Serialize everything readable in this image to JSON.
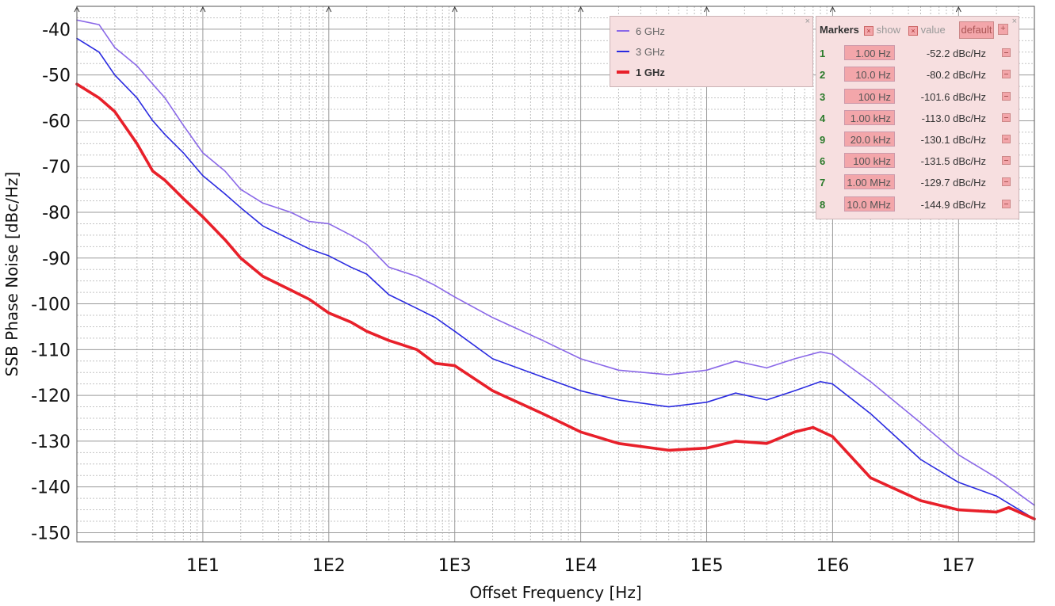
{
  "chart_data": {
    "type": "line",
    "xscale": "log",
    "xlabel": "Offset Frequency [Hz]",
    "ylabel": "SSB Phase Noise [dBc/Hz]",
    "xlim": [
      1,
      40000000
    ],
    "ylim": [
      -152,
      -35
    ],
    "grid": true,
    "legend_position": "top-right",
    "x_ticks": [
      {
        "value": 10,
        "label": "1E1"
      },
      {
        "value": 100,
        "label": "1E2"
      },
      {
        "value": 1000,
        "label": "1E3"
      },
      {
        "value": 10000,
        "label": "1E4"
      },
      {
        "value": 100000,
        "label": "1E5"
      },
      {
        "value": 1000000,
        "label": "1E6"
      },
      {
        "value": 10000000,
        "label": "1E7"
      }
    ],
    "y_ticks": [
      -40,
      -50,
      -60,
      -70,
      -80,
      -90,
      -100,
      -110,
      -120,
      -130,
      -140,
      -150
    ],
    "series": [
      {
        "name": "6 GHz",
        "color": "#8a68e8",
        "x": [
          1,
          1.5,
          2,
          3,
          4,
          5,
          7,
          10,
          15,
          20,
          30,
          50,
          70,
          100,
          150,
          200,
          300,
          500,
          700,
          1000,
          2000,
          5000,
          10000,
          20000,
          50000,
          100000,
          170000,
          300000,
          500000,
          800000,
          1000000,
          2000000,
          5000000,
          10000000,
          20000000,
          40000000
        ],
        "y": [
          -38,
          -39,
          -44,
          -48,
          -52,
          -55,
          -61,
          -67,
          -71,
          -75,
          -78,
          -80,
          -82,
          -82.5,
          -85,
          -87,
          -92,
          -94,
          -96,
          -98.5,
          -103,
          -108,
          -112,
          -114.5,
          -115.5,
          -114.5,
          -112.5,
          -114,
          -112,
          -110.5,
          -111,
          -117,
          -126,
          -133,
          -138,
          -144
        ]
      },
      {
        "name": "3 GHz",
        "color": "#2a2ae0",
        "x": [
          1,
          1.5,
          2,
          3,
          4,
          5,
          7,
          10,
          15,
          20,
          30,
          50,
          70,
          100,
          150,
          200,
          300,
          500,
          700,
          1000,
          2000,
          5000,
          10000,
          20000,
          50000,
          100000,
          170000,
          300000,
          500000,
          800000,
          1000000,
          2000000,
          5000000,
          10000000,
          20000000,
          40000000
        ],
        "y": [
          -42,
          -45,
          -50,
          -55,
          -60,
          -63,
          -67,
          -72,
          -76,
          -79,
          -83,
          -86,
          -88,
          -89.5,
          -92,
          -93.5,
          -98,
          -101,
          -103,
          -106,
          -112,
          -116,
          -119,
          -121,
          -122.5,
          -121.5,
          -119.5,
          -121,
          -119,
          -117,
          -117.5,
          -124,
          -134,
          -139,
          -142,
          -147
        ]
      },
      {
        "name": "1 GHz",
        "color": "#e8202a",
        "x": [
          1,
          1.5,
          2,
          3,
          4,
          5,
          7,
          10,
          15,
          20,
          30,
          50,
          70,
          100,
          150,
          200,
          300,
          500,
          700,
          1000,
          2000,
          5000,
          10000,
          20000,
          50000,
          100000,
          170000,
          300000,
          500000,
          700000,
          1000000,
          2000000,
          5000000,
          10000000,
          20000000,
          25000000,
          40000000
        ],
        "y": [
          -52,
          -55,
          -58,
          -65,
          -71,
          -73,
          -77,
          -81,
          -86,
          -90,
          -94,
          -97,
          -99,
          -102,
          -104,
          -106,
          -108,
          -110,
          -113,
          -113.5,
          -119,
          -124,
          -128,
          -130.5,
          -132,
          -131.5,
          -130,
          -130.5,
          -128,
          -127,
          -129,
          -138,
          -143,
          -145,
          -145.5,
          -144.5,
          -147
        ]
      }
    ]
  },
  "legend": {
    "close": "×",
    "items": [
      {
        "label": "6 GHz",
        "color": "#8a68e8"
      },
      {
        "label": "3 GHz",
        "color": "#2a2ae0"
      },
      {
        "label": "1 GHz",
        "color": "#e8202a"
      }
    ]
  },
  "markers": {
    "title": "Markers",
    "show_label": "show",
    "value_label": "value",
    "default_label": "default",
    "add_label": "+",
    "close": "×",
    "rows": [
      {
        "id": "1",
        "freq": "1.00 Hz",
        "value": "-52.2 dBc/Hz"
      },
      {
        "id": "2",
        "freq": "10.0 Hz",
        "value": "-80.2 dBc/Hz"
      },
      {
        "id": "3",
        "freq": "100 Hz",
        "value": "-101.6 dBc/Hz"
      },
      {
        "id": "4",
        "freq": "1.00 kHz",
        "value": "-113.0 dBc/Hz"
      },
      {
        "id": "9",
        "freq": "20.0 kHz",
        "value": "-130.1 dBc/Hz"
      },
      {
        "id": "6",
        "freq": "100 kHz",
        "value": "-131.5 dBc/Hz"
      },
      {
        "id": "7",
        "freq": "1.00 MHz",
        "value": "-129.7 dBc/Hz"
      },
      {
        "id": "8",
        "freq": "10.0 MHz",
        "value": "-144.9 dBc/Hz"
      }
    ]
  }
}
